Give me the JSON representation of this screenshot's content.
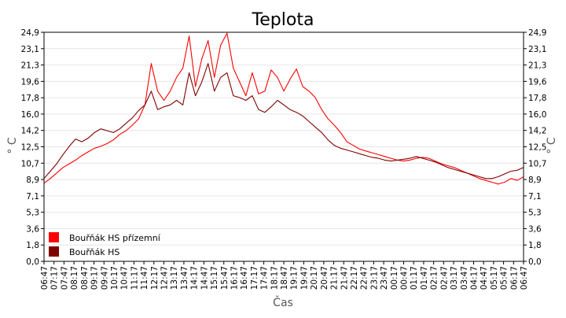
{
  "chart_data": {
    "type": "line",
    "title": "Teplota",
    "xlabel": "Čas",
    "ylabel": "° C",
    "ylim": [
      0,
      24.9
    ],
    "y_ticks": [
      "0,0",
      "1,8",
      "3,6",
      "5,3",
      "7,1",
      "8,9",
      "10,7",
      "12,5",
      "14,2",
      "16,0",
      "17,8",
      "19,6",
      "21,3",
      "23,1",
      "24,9"
    ],
    "x_ticks": [
      "06:47",
      "07:17",
      "07:47",
      "08:17",
      "08:47",
      "09:17",
      "09:47",
      "10:17",
      "10:47",
      "11:17",
      "11:47",
      "12:17",
      "12:47",
      "13:17",
      "13:47",
      "14:17",
      "14:47",
      "15:17",
      "15:47",
      "16:17",
      "16:47",
      "17:17",
      "17:47",
      "18:17",
      "18:47",
      "19:17",
      "19:47",
      "20:17",
      "20:47",
      "21:17",
      "21:47",
      "22:17",
      "22:47",
      "23:17",
      "23:47",
      "00:17",
      "00:47",
      "01:17",
      "01:47",
      "02:17",
      "02:47",
      "03:17",
      "03:47",
      "04:17",
      "04:47",
      "05:17",
      "05:47",
      "06:17",
      "06:47"
    ],
    "grid": true,
    "legend_position": "bottom-left",
    "series": [
      {
        "name": "Bouřňák HS přízemní",
        "color": "#ff0000",
        "values": [
          8.5,
          9.0,
          9.6,
          10.2,
          10.6,
          11.0,
          11.5,
          11.9,
          12.3,
          12.5,
          12.8,
          13.2,
          13.8,
          14.2,
          14.8,
          15.5,
          17.0,
          21.5,
          18.5,
          17.5,
          18.5,
          20.0,
          21.0,
          24.5,
          19.0,
          22.0,
          24.0,
          20.0,
          23.5,
          24.8,
          21.0,
          19.5,
          18.0,
          20.5,
          18.2,
          18.5,
          20.8,
          20.0,
          18.5,
          19.8,
          20.9,
          19.0,
          18.5,
          17.8,
          16.5,
          15.5,
          14.8,
          14.0,
          13.0,
          12.6,
          12.2,
          12.0,
          11.8,
          11.6,
          11.4,
          11.2,
          11.0,
          10.9,
          11.0,
          11.2,
          11.3,
          11.2,
          10.9,
          10.6,
          10.4,
          10.2,
          9.9,
          9.6,
          9.3,
          9.0,
          8.8,
          8.6,
          8.4,
          8.6,
          9.0,
          8.8,
          9.2
        ]
      },
      {
        "name": "Bouřňák HS",
        "color": "#800000",
        "values": [
          9.0,
          9.8,
          10.6,
          11.6,
          12.5,
          13.3,
          13.0,
          13.4,
          14.0,
          14.4,
          14.2,
          14.0,
          14.4,
          15.0,
          15.6,
          16.4,
          17.0,
          18.5,
          16.5,
          16.8,
          17.0,
          17.5,
          17.0,
          20.5,
          18.0,
          19.5,
          21.5,
          18.5,
          20.0,
          20.5,
          18.0,
          17.8,
          17.5,
          18.0,
          16.5,
          16.2,
          16.8,
          17.5,
          17.0,
          16.5,
          16.2,
          15.8,
          15.2,
          14.6,
          14.0,
          13.2,
          12.6,
          12.3,
          12.1,
          11.9,
          11.7,
          11.5,
          11.3,
          11.2,
          11.0,
          10.9,
          11.0,
          11.1,
          11.2,
          11.4,
          11.2,
          11.0,
          10.8,
          10.5,
          10.2,
          10.0,
          9.8,
          9.6,
          9.4,
          9.2,
          9.0,
          9.0,
          9.2,
          9.5,
          9.8,
          9.9,
          10.2
        ]
      }
    ]
  }
}
